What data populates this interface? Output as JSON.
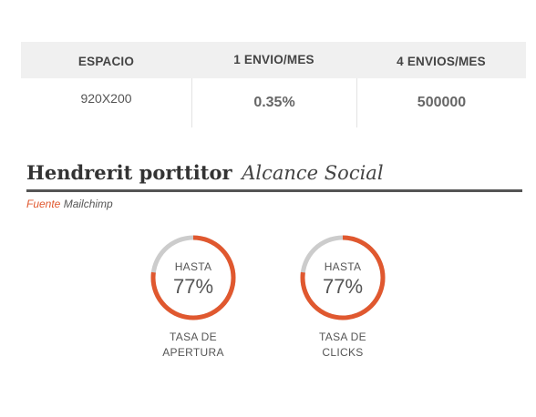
{
  "table": {
    "headers": [
      "ESPACIO",
      "1 ENVIO/MES",
      "4 ENVIOS/MES"
    ],
    "row": [
      "920X200",
      "0.35%",
      "500000"
    ]
  },
  "section": {
    "title_bold": "Hendrerit porttitor",
    "title_italic": "Alcance Social",
    "source_label": "Fuente",
    "source_value": "Mailchimp"
  },
  "metrics": [
    {
      "prefix": "HASTA",
      "value": "77%",
      "percent": 77,
      "label_line1": "TASA DE",
      "label_line2": "APERTURA"
    },
    {
      "prefix": "HASTA",
      "value": "77%",
      "percent": 77,
      "label_line1": "TASA DE",
      "label_line2": "CLICKS"
    }
  ],
  "colors": {
    "accent": "#e0582f",
    "track": "#cccccc",
    "header_bg": "#f0f0f0"
  }
}
